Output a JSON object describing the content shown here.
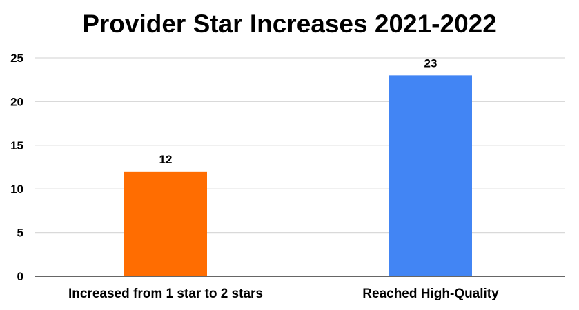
{
  "chart_data": {
    "type": "bar",
    "title": "Provider Star Increases 2021-2022",
    "categories": [
      "Increased from 1 star to 2 stars",
      "Reached High-Quality"
    ],
    "values": [
      12,
      23
    ],
    "data_labels": [
      "12",
      "23"
    ],
    "bar_colors": [
      "#ff6d01",
      "#4285f4"
    ],
    "ylim": [
      0,
      25
    ],
    "yticks": [
      0,
      5,
      10,
      15,
      20,
      25
    ],
    "ytick_labels": [
      "0",
      "5",
      "10",
      "15",
      "20",
      "25"
    ],
    "grid": true,
    "legend": false
  }
}
